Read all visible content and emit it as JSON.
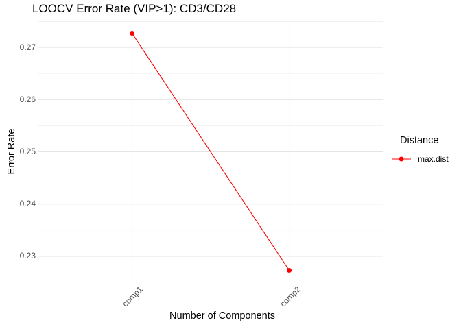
{
  "chart_data": {
    "type": "line",
    "title": "LOOCV Error Rate (VIP>1): CD3/CD28",
    "xlabel": "Number of Components",
    "ylabel": "Error Rate",
    "categories": [
      "comp1",
      "comp2"
    ],
    "series": [
      {
        "name": "max.dist",
        "color": "#FF0000",
        "values": [
          0.2727,
          0.2273
        ]
      }
    ],
    "ylim": [
      0.225,
      0.275
    ],
    "yticks": [
      0.23,
      0.24,
      0.25,
      0.26,
      0.27
    ],
    "ytick_labels": [
      "0.23",
      "0.24",
      "0.25",
      "0.26",
      "0.27"
    ],
    "minor_yticks": [
      0.225,
      0.235,
      0.245,
      0.255,
      0.265,
      0.275
    ],
    "grid": true,
    "legend": {
      "title": "Distance",
      "position": "right"
    }
  },
  "colors": {
    "background": "#FFFFFF",
    "grid_major": "#E4E4E4",
    "grid_minor": "#F1F1F1",
    "axis_text": "#4D4D4D",
    "title_text": "#000000",
    "series_red": "#FF0000"
  },
  "layout": {
    "point_radius": 3.5,
    "line_width": 1.1
  }
}
